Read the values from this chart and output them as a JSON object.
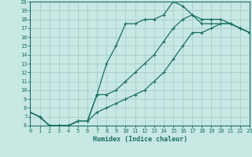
{
  "xlabel": "Humidex (Indice chaleur)",
  "xlim": [
    0,
    23
  ],
  "ylim": [
    6,
    20
  ],
  "xticks": [
    0,
    1,
    2,
    3,
    4,
    5,
    6,
    7,
    8,
    9,
    10,
    11,
    12,
    13,
    14,
    15,
    16,
    17,
    18,
    19,
    20,
    21,
    22,
    23
  ],
  "yticks": [
    6,
    7,
    8,
    9,
    10,
    11,
    12,
    13,
    14,
    15,
    16,
    17,
    18,
    19,
    20
  ],
  "bg_color": "#c8e8e4",
  "grid_color": "#a0c8c4",
  "line_color": "#1a7060",
  "line1_x": [
    0,
    1,
    2,
    3,
    4,
    5,
    6,
    7,
    8,
    9,
    10,
    11,
    12,
    13,
    14,
    15,
    16,
    17,
    18,
    19,
    20,
    21,
    22,
    23
  ],
  "line1_y": [
    7.5,
    7.0,
    6.0,
    6.0,
    6.0,
    6.5,
    6.5,
    9.5,
    13.0,
    15.0,
    17.5,
    17.5,
    18.0,
    18.0,
    18.5,
    20.0,
    19.5,
    18.5,
    17.5,
    17.5,
    17.5,
    17.5,
    17.0,
    16.5
  ],
  "line2_x": [
    0,
    1,
    2,
    3,
    4,
    5,
    6,
    7,
    8,
    9,
    10,
    11,
    12,
    13,
    14,
    15,
    16,
    17,
    18,
    19,
    20,
    21,
    22,
    23
  ],
  "line2_y": [
    7.5,
    7.0,
    6.0,
    6.0,
    6.0,
    6.5,
    6.5,
    9.5,
    9.5,
    10.0,
    11.0,
    12.0,
    13.0,
    14.0,
    15.5,
    17.0,
    18.0,
    18.5,
    18.0,
    18.0,
    18.0,
    17.5,
    17.0,
    16.5
  ],
  "line3_x": [
    0,
    1,
    2,
    3,
    4,
    5,
    6,
    7,
    8,
    9,
    10,
    11,
    12,
    13,
    14,
    15,
    16,
    17,
    18,
    19,
    20,
    21,
    22,
    23
  ],
  "line3_y": [
    7.5,
    7.0,
    6.0,
    6.0,
    6.0,
    6.5,
    6.5,
    7.5,
    8.0,
    8.5,
    9.0,
    9.5,
    10.0,
    11.0,
    12.0,
    13.5,
    15.0,
    16.5,
    16.5,
    17.0,
    17.5,
    17.5,
    17.0,
    16.5
  ]
}
